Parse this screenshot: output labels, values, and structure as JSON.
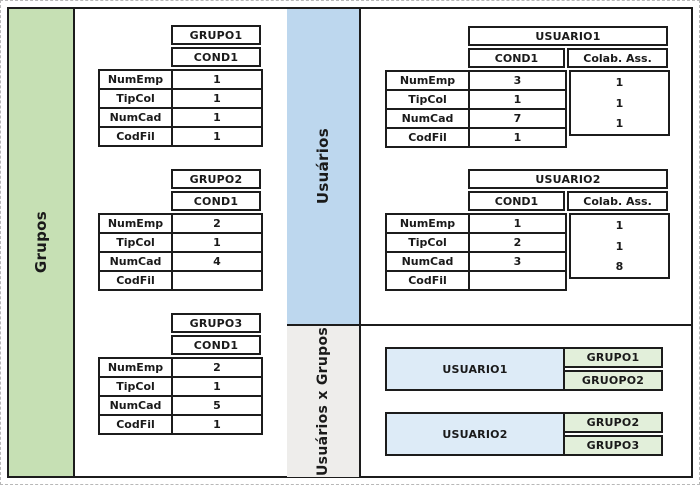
{
  "panels": {
    "grupos_label": "Grupos",
    "usuarios_label": "Usuários",
    "usuarios_x_grupos_label": "Usuários x Grupos"
  },
  "colors": {
    "panel_green": "#c6e0b4",
    "panel_blue": "#bdd7ee",
    "panel_gray": "#eeedeb",
    "mapping_user_blue": "#ddebf7",
    "mapping_group_green": "#e2efda",
    "border": "#1c1c1c"
  },
  "row_labels": [
    "NumEmp",
    "TipCol",
    "NumCad",
    "CodFil"
  ],
  "grupo_tables": [
    {
      "title": "GRUPO1",
      "cond_label": "COND1",
      "values": [
        "1",
        "1",
        "1",
        "1"
      ]
    },
    {
      "title": "GRUPO2",
      "cond_label": "COND1",
      "values": [
        "2",
        "1",
        "4",
        ""
      ]
    },
    {
      "title": "GRUPO3",
      "cond_label": "COND1",
      "values": [
        "2",
        "1",
        "5",
        "1"
      ]
    }
  ],
  "usuario_tables": [
    {
      "title": "USUARIO1",
      "cond_label": "COND1",
      "colab_label": "Colab. Ass.",
      "cond_values": [
        "3",
        "1",
        "7",
        "1"
      ],
      "colab_values": [
        "1",
        "1",
        "1"
      ]
    },
    {
      "title": "USUARIO2",
      "cond_label": "COND1",
      "colab_label": "Colab. Ass.",
      "cond_values": [
        "1",
        "2",
        "3",
        ""
      ],
      "colab_values": [
        "1",
        "1",
        "8"
      ]
    }
  ],
  "mappings": [
    {
      "user": "USUARIO1",
      "groups": [
        "GRUPO1",
        "GRUOPO2"
      ]
    },
    {
      "user": "USUARIO2",
      "groups": [
        "GRUPO2",
        "GRUPO3"
      ]
    }
  ]
}
